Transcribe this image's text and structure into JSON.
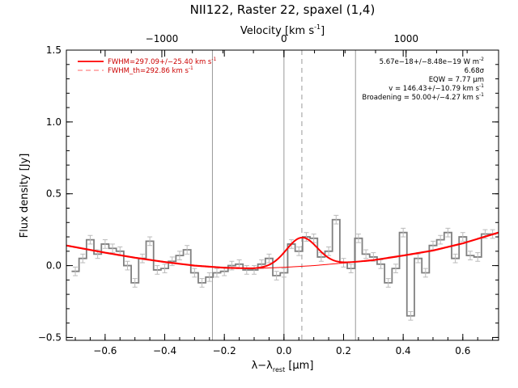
{
  "chart_data": {
    "type": "line",
    "title": "NII122, Raster 22, spaxel (1,4)",
    "xlabel": "λ−λ",
    "xlabel_sub": "rest",
    "xlabel_unit": "[μm]",
    "ylabel": "Flux density [Jy]",
    "top_axis_label": "Velocity [km s",
    "top_axis_label_sup": "-1",
    "top_axis_label_end": "]",
    "xlim": [
      -0.73,
      0.72
    ],
    "ylim": [
      -0.52,
      1.5
    ],
    "x_ticks": [
      -0.6,
      -0.4,
      -0.2,
      0.0,
      0.2,
      0.4,
      0.6
    ],
    "x_tick_labels": [
      "−0.6",
      "−0.4",
      "−0.2",
      "0.0",
      "0.2",
      "0.4",
      "0.6"
    ],
    "y_ticks": [
      -0.5,
      0.0,
      0.5,
      1.0,
      1.5
    ],
    "y_tick_labels": [
      "−0.5",
      "0.0",
      "0.5",
      "1.0",
      "1.5"
    ],
    "top_ticks": [
      -1000,
      0,
      1000
    ],
    "top_tick_labels": [
      "−1000",
      "0",
      "1000"
    ],
    "km_s_per_um": 2441,
    "vertical_lines": [
      -0.24,
      0.0,
      0.24
    ],
    "dashed_vertical_line": 0.06,
    "legend": {
      "placement": "top-left",
      "entries": [
        {
          "label": "FWHM=297.09+/−25.40 km s",
          "sup": "-1",
          "style": "solid"
        },
        {
          "label": "FWHM_th=292.86 km s",
          "sup": "-1",
          "style": "dashed"
        }
      ]
    },
    "annotations": [
      {
        "text": "5.67e−18+/−8.48e−19 W m",
        "sup": "-2"
      },
      {
        "text": "6.68σ",
        "sup": ""
      },
      {
        "text": "EQW = 7.77 μm",
        "sup": ""
      },
      {
        "text": "v = 146.43+/−10.79 km s",
        "sup": "-1"
      },
      {
        "text": "Broadening = 50.00+/−4.27 km s",
        "sup": "-1"
      }
    ],
    "colors": {
      "data": "#808080",
      "fit": "#ff0000",
      "axes": "#000000",
      "vlines": "#999999"
    },
    "series": [
      {
        "name": "spectrum",
        "style": "step",
        "x": [
          -0.7,
          -0.675,
          -0.65,
          -0.625,
          -0.6,
          -0.575,
          -0.55,
          -0.525,
          -0.5,
          -0.475,
          -0.45,
          -0.425,
          -0.4,
          -0.375,
          -0.35,
          -0.325,
          -0.3,
          -0.275,
          -0.25,
          -0.225,
          -0.2,
          -0.175,
          -0.15,
          -0.125,
          -0.1,
          -0.075,
          -0.05,
          -0.025,
          0.0,
          0.025,
          0.05,
          0.075,
          0.1,
          0.125,
          0.15,
          0.175,
          0.2,
          0.225,
          0.25,
          0.275,
          0.3,
          0.325,
          0.35,
          0.375,
          0.4,
          0.425,
          0.45,
          0.475,
          0.5,
          0.525,
          0.55,
          0.575,
          0.6,
          0.625,
          0.65,
          0.675,
          0.7
        ],
        "y": [
          -0.04,
          0.05,
          0.18,
          0.08,
          0.15,
          0.12,
          0.1,
          0.0,
          -0.12,
          0.05,
          0.17,
          -0.03,
          -0.02,
          0.03,
          0.07,
          0.11,
          -0.05,
          -0.12,
          -0.08,
          -0.05,
          -0.04,
          0.0,
          0.01,
          -0.03,
          -0.03,
          0.01,
          0.05,
          -0.07,
          -0.05,
          0.15,
          0.1,
          0.2,
          0.19,
          0.06,
          0.1,
          0.32,
          0.02,
          -0.02,
          0.19,
          0.08,
          0.06,
          0.01,
          -0.12,
          -0.02,
          0.23,
          -0.35,
          0.05,
          -0.05,
          0.14,
          0.18,
          0.23,
          0.05,
          0.2,
          0.07,
          0.06,
          0.22,
          0.22
        ],
        "error": 0.03
      },
      {
        "name": "continuum",
        "style": "line",
        "x": [
          -0.73,
          -0.6,
          -0.5,
          -0.4,
          -0.3,
          -0.2,
          -0.1,
          0.0,
          0.1,
          0.2,
          0.3,
          0.4,
          0.5,
          0.6,
          0.72
        ],
        "y": [
          0.14,
          0.09,
          0.055,
          0.025,
          0.0,
          -0.015,
          -0.02,
          -0.012,
          0.0,
          0.018,
          0.038,
          0.07,
          0.105,
          0.155,
          0.23
        ]
      },
      {
        "name": "gaussian_fit",
        "style": "gaussian",
        "center": 0.06,
        "sigma": 0.052,
        "amplitude": 0.2
      }
    ]
  }
}
